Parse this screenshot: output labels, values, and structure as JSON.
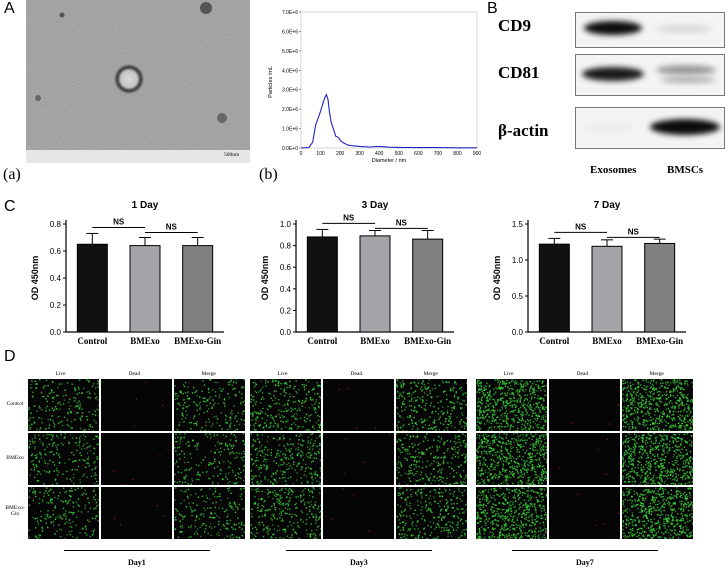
{
  "panel_letters": {
    "A": "A",
    "B": "B",
    "C": "C",
    "D": "D"
  },
  "sub_letters": {
    "a": "(a)",
    "b": "(b)"
  },
  "tem": {
    "scale_text": "500nm"
  },
  "nta": {
    "ylabel": "Particles /mL",
    "xlabel": "Diameter / nm",
    "yticks": [
      "0.0E+0",
      "1.0E+6",
      "2.0E+6",
      "3.0E+6",
      "4.0E+6",
      "5.0E+6",
      "6.0E+6",
      "7.0E+6"
    ],
    "xticks": [
      "0",
      "100",
      "200",
      "300",
      "400",
      "500",
      "600",
      "700",
      "800",
      "900"
    ],
    "line_color": "#2222cc"
  },
  "western": {
    "rows": [
      "CD9",
      "CD81",
      "β-actin"
    ],
    "lanes": [
      "Exosomes",
      "BMSCs"
    ]
  },
  "chart_data": [
    {
      "type": "bar",
      "title": "1 Day",
      "ylabel": "OD 450nm",
      "categories": [
        "Control",
        "BMExo",
        "BMExo-Gin"
      ],
      "values": [
        0.65,
        0.64,
        0.64
      ],
      "errors": [
        0.08,
        0.06,
        0.06
      ],
      "ylim": [
        0,
        0.8
      ],
      "yticks": [
        "0.0",
        "0.2",
        "0.4",
        "0.6",
        "0.8"
      ],
      "colors": [
        "#111111",
        "#a3a3a8",
        "#808080"
      ],
      "significance": [
        "NS",
        "NS"
      ]
    },
    {
      "type": "bar",
      "title": "3 Day",
      "ylabel": "OD 450nm",
      "categories": [
        "Control",
        "BMExo",
        "BMExo-Gin"
      ],
      "values": [
        0.88,
        0.89,
        0.86
      ],
      "errors": [
        0.07,
        0.05,
        0.08
      ],
      "ylim": [
        0,
        1.0
      ],
      "yticks": [
        "0.0",
        "0.2",
        "0.4",
        "0.6",
        "0.8",
        "1.0"
      ],
      "colors": [
        "#111111",
        "#a3a3a8",
        "#808080"
      ],
      "significance": [
        "NS",
        "NS"
      ]
    },
    {
      "type": "bar",
      "title": "7 Day",
      "ylabel": "OD 450nm",
      "categories": [
        "Control",
        "BMExo",
        "BMExo-Gin"
      ],
      "values": [
        1.22,
        1.19,
        1.23
      ],
      "errors": [
        0.08,
        0.09,
        0.06
      ],
      "ylim": [
        0,
        1.5
      ],
      "yticks": [
        "0.0",
        "0.5",
        "1.0",
        "1.5"
      ],
      "colors": [
        "#111111",
        "#a3a3a8",
        "#808080"
      ],
      "significance": [
        "NS",
        "NS"
      ]
    }
  ],
  "live_dead": {
    "columns": [
      "Live",
      "Dead",
      "Merge"
    ],
    "rows": [
      "Control",
      "BMExo",
      "BMExo-Gin"
    ],
    "days": [
      "Day1",
      "Day3",
      "Day7"
    ],
    "density": [
      0.16,
      0.32,
      0.9
    ],
    "live_color": "#3bd13b",
    "dead_color": "#b11a1a"
  }
}
